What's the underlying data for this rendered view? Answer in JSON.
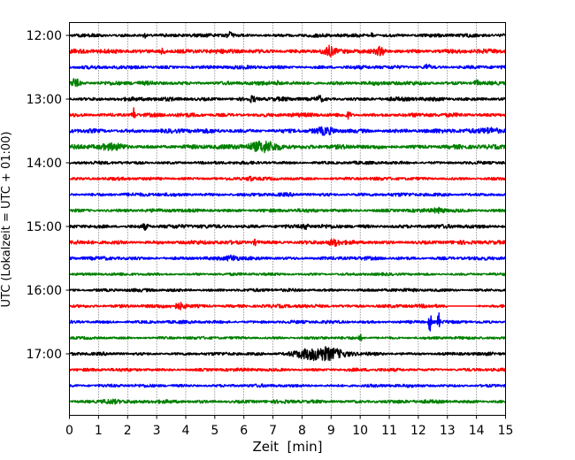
{
  "chart_data": {
    "type": "line",
    "subtype": "helicorder",
    "title": "",
    "xlabel": "Zeit  [min]",
    "ylabel": "UTC (Lokalzeit = UTC + 01:00)",
    "xlim": [
      0,
      15
    ],
    "x_ticks": [
      0,
      1,
      2,
      3,
      4,
      5,
      6,
      7,
      8,
      9,
      10,
      11,
      12,
      13,
      14,
      15
    ],
    "x_tick_labels": [
      "0",
      "1",
      "2",
      "3",
      "4",
      "5",
      "6",
      "7",
      "8",
      "9",
      "10",
      "11",
      "12",
      "13",
      "14",
      "15"
    ],
    "y_tick_labels": [
      "12:00",
      "13:00",
      "14:00",
      "15:00",
      "16:00",
      "17:00"
    ],
    "start_time": "12:00",
    "minutes_per_line": 15,
    "vertical_grid": "dotted",
    "color_cycle": [
      "#000000",
      "#ff0000",
      "#0000ff",
      "#008000"
    ],
    "traces": [
      {
        "start": "12:00",
        "amp": 0.9,
        "events": [
          [
            2.6,
            2.0,
            0.06
          ],
          [
            5.5,
            1.8,
            0.1
          ],
          [
            10.4,
            2.2,
            0.05
          ]
        ]
      },
      {
        "start": "12:15",
        "amp": 1.1,
        "events": [
          [
            3.2,
            1.8,
            0.1
          ],
          [
            8.9,
            3.0,
            0.2
          ],
          [
            10.7,
            2.2,
            0.15
          ]
        ]
      },
      {
        "start": "12:30",
        "amp": 0.9,
        "events": [
          [
            12.3,
            1.8,
            0.1
          ]
        ]
      },
      {
        "start": "12:45",
        "amp": 1.0,
        "events": [
          [
            0.2,
            2.5,
            0.15
          ],
          [
            7.2,
            2.0,
            0.05
          ],
          [
            14.0,
            1.6,
            0.1
          ]
        ]
      },
      {
        "start": "13:00",
        "amp": 1.0,
        "events": [
          [
            6.3,
            1.8,
            0.1
          ],
          [
            8.6,
            1.6,
            0.1
          ]
        ]
      },
      {
        "start": "13:15",
        "amp": 1.0,
        "events": [
          [
            2.2,
            5.0,
            0.05
          ],
          [
            9.6,
            2.0,
            0.08
          ]
        ]
      },
      {
        "start": "13:30",
        "amp": 1.1,
        "events": [
          [
            8.8,
            1.6,
            0.3
          ],
          [
            14.5,
            1.8,
            0.3
          ]
        ]
      },
      {
        "start": "13:45",
        "amp": 1.1,
        "events": [
          [
            6.7,
            3.2,
            0.6
          ],
          [
            1.5,
            1.4,
            0.5
          ]
        ]
      },
      {
        "start": "14:00",
        "amp": 0.8,
        "events": []
      },
      {
        "start": "14:15",
        "amp": 0.8,
        "events": [
          [
            6.2,
            1.4,
            0.1
          ]
        ]
      },
      {
        "start": "14:30",
        "amp": 0.9,
        "events": []
      },
      {
        "start": "14:45",
        "amp": 0.9,
        "events": [
          [
            12.7,
            1.4,
            0.2
          ]
        ]
      },
      {
        "start": "15:00",
        "amp": 1.0,
        "events": [
          [
            2.6,
            1.6,
            0.1
          ],
          [
            8.1,
            1.5,
            0.1
          ]
        ]
      },
      {
        "start": "15:15",
        "amp": 1.0,
        "events": [
          [
            6.4,
            1.6,
            0.1
          ],
          [
            9.1,
            1.6,
            0.2
          ]
        ]
      },
      {
        "start": "15:30",
        "amp": 0.9,
        "events": [
          [
            5.6,
            1.6,
            0.2
          ]
        ]
      },
      {
        "start": "15:45",
        "amp": 0.7,
        "events": []
      },
      {
        "start": "16:00",
        "amp": 0.8,
        "events": []
      },
      {
        "start": "16:15",
        "amp": 0.9,
        "events": [
          [
            3.8,
            1.8,
            0.2
          ]
        ],
        "gap": [
          13.0,
          14.0
        ]
      },
      {
        "start": "16:30",
        "amp": 0.8,
        "events": [
          [
            12.4,
            9.0,
            0.04
          ],
          [
            12.7,
            6.0,
            0.04
          ]
        ]
      },
      {
        "start": "16:45",
        "amp": 0.7,
        "events": [
          [
            10.0,
            2.0,
            0.05
          ]
        ]
      },
      {
        "start": "17:00",
        "amp": 0.8,
        "events": [
          [
            8.6,
            4.5,
            0.8
          ]
        ]
      },
      {
        "start": "17:15",
        "amp": 0.8,
        "events": []
      },
      {
        "start": "17:30",
        "amp": 0.8,
        "events": []
      },
      {
        "start": "17:45",
        "amp": 0.9,
        "events": [
          [
            1.4,
            1.3,
            0.3
          ]
        ]
      }
    ]
  }
}
